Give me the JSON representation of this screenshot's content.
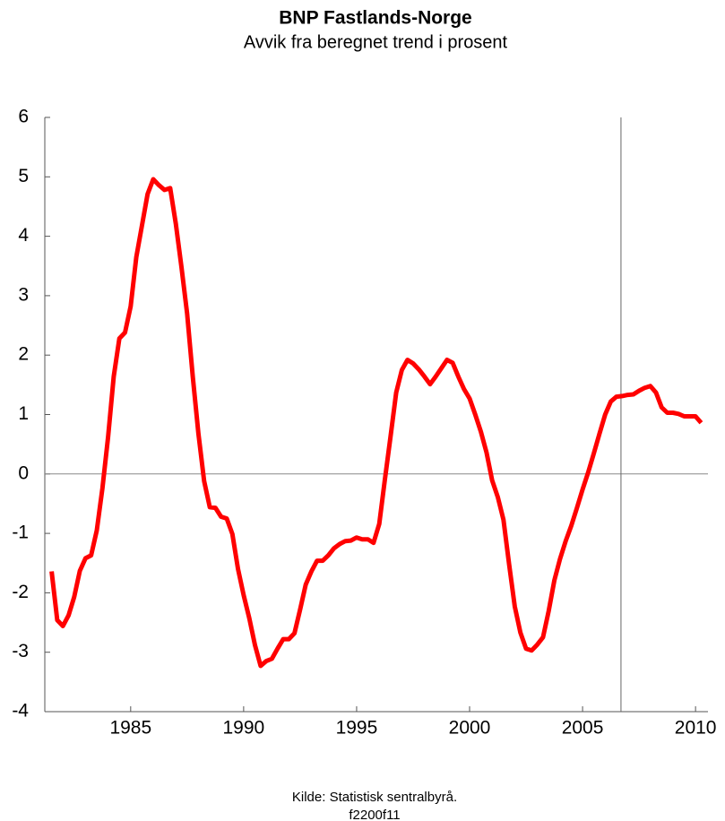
{
  "chart_data": {
    "type": "line",
    "title": "BNP Fastlands-Norge",
    "subtitle": "Avvik fra beregnet trend i prosent",
    "source": "Kilde: Statistisk sentralbyrå.",
    "code": "f2200f11",
    "x": [
      1981.5,
      1981.75,
      1982,
      1982.25,
      1982.5,
      1982.75,
      1983,
      1983.25,
      1983.5,
      1983.75,
      1984,
      1984.25,
      1984.5,
      1984.75,
      1985,
      1985.25,
      1985.5,
      1985.75,
      1986,
      1986.25,
      1986.5,
      1986.75,
      1987,
      1987.25,
      1987.5,
      1987.75,
      1988,
      1988.25,
      1988.5,
      1988.75,
      1989,
      1989.25,
      1989.5,
      1989.75,
      1990,
      1990.25,
      1990.5,
      1990.75,
      1991,
      1991.25,
      1991.5,
      1991.75,
      1992,
      1992.25,
      1992.5,
      1992.75,
      1993,
      1993.25,
      1993.5,
      1993.75,
      1994,
      1994.25,
      1994.5,
      1994.75,
      1995,
      1995.25,
      1995.5,
      1995.75,
      1996,
      1996.25,
      1996.5,
      1996.75,
      1997,
      1997.25,
      1997.5,
      1997.75,
      1998,
      1998.25,
      1998.5,
      1998.75,
      1999,
      1999.25,
      1999.5,
      1999.75,
      2000,
      2000.25,
      2000.5,
      2000.75,
      2001,
      2001.25,
      2001.5,
      2001.75,
      2002,
      2002.25,
      2002.5,
      2002.75,
      2003,
      2003.25,
      2003.5,
      2003.75,
      2004,
      2004.25,
      2004.5,
      2004.75,
      2005,
      2005.25,
      2005.5,
      2005.75,
      2006,
      2006.25,
      2006.5,
      2006.75,
      2007,
      2007.25,
      2007.5,
      2007.75,
      2008,
      2008.25,
      2008.5,
      2008.75,
      2009,
      2009.25,
      2009.5,
      2009.75,
      2010,
      2010.25
    ],
    "series": [
      {
        "color": "#ff0000",
        "values": [
          -1.64,
          -2.46,
          -2.56,
          -2.38,
          -2.07,
          -1.63,
          -1.42,
          -1.37,
          -0.95,
          -0.24,
          0.62,
          1.64,
          2.28,
          2.38,
          2.82,
          3.65,
          4.18,
          4.71,
          4.96,
          4.86,
          4.78,
          4.81,
          4.21,
          3.48,
          2.7,
          1.64,
          0.68,
          -0.12,
          -0.56,
          -0.57,
          -0.72,
          -0.75,
          -1.01,
          -1.6,
          -2.04,
          -2.43,
          -2.88,
          -3.23,
          -3.15,
          -3.11,
          -2.94,
          -2.78,
          -2.78,
          -2.68,
          -2.28,
          -1.86,
          -1.64,
          -1.46,
          -1.46,
          -1.37,
          -1.25,
          -1.18,
          -1.13,
          -1.12,
          -1.07,
          -1.1,
          -1.1,
          -1.16,
          -0.84,
          -0.09,
          0.63,
          1.37,
          1.75,
          1.92,
          1.86,
          1.76,
          1.64,
          1.51,
          1.64,
          1.78,
          1.92,
          1.87,
          1.64,
          1.43,
          1.27,
          1.0,
          0.71,
          0.36,
          -0.11,
          -0.39,
          -0.77,
          -1.52,
          -2.23,
          -2.67,
          -2.94,
          -2.97,
          -2.87,
          -2.75,
          -2.31,
          -1.79,
          -1.43,
          -1.13,
          -0.87,
          -0.57,
          -0.26,
          0.03,
          0.35,
          0.68,
          1.0,
          1.22,
          1.3,
          1.31,
          1.33,
          1.34,
          1.4,
          1.45,
          1.48,
          1.37,
          1.12,
          1.03,
          1.03,
          1.01,
          0.97,
          0.97,
          0.97,
          0.86
        ]
      }
    ],
    "xlim": [
      1981.2,
      2010.55
    ],
    "ylim": [
      -4,
      6
    ],
    "xticks": [
      1985,
      1990,
      1995,
      2000,
      2005,
      2010
    ],
    "yticks": [
      -4,
      -3,
      -2,
      -1,
      0,
      1,
      2,
      3,
      4,
      5,
      6
    ],
    "vline": 2006.7,
    "zero_line": true
  }
}
